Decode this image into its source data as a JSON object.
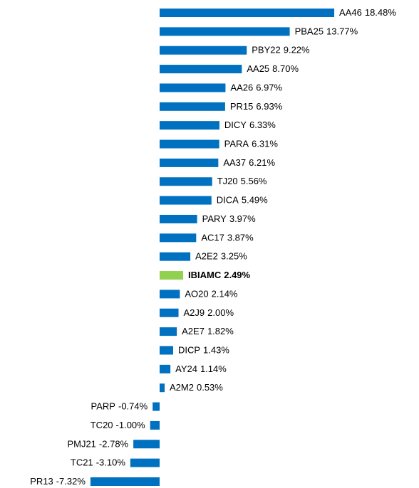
{
  "chart_data": {
    "type": "bar",
    "orientation": "horizontal",
    "categories": [
      "AA46",
      "PBA25",
      "PBY22",
      "AA25",
      "AA26",
      "PR15",
      "DICY",
      "PARA",
      "AA37",
      "TJ20",
      "DICA",
      "PARY",
      "AC17",
      "A2E2",
      "IBIAMC",
      "AO20",
      "A2J9",
      "A2E7",
      "DICP",
      "AY24",
      "A2M2",
      "PARP",
      "TC20",
      "PMJ21",
      "TC21",
      "PR13"
    ],
    "values": [
      18.48,
      13.77,
      9.22,
      8.7,
      6.97,
      6.93,
      6.33,
      6.31,
      6.21,
      5.56,
      5.49,
      3.97,
      3.87,
      3.25,
      2.49,
      2.14,
      2.0,
      1.82,
      1.43,
      1.14,
      0.53,
      -0.74,
      -1.0,
      -2.78,
      -3.1,
      -7.32
    ],
    "value_labels": [
      "18.48%",
      "13.77%",
      "9.22%",
      "8.70%",
      "6.97%",
      "6.93%",
      "6.33%",
      "6.31%",
      "6.21%",
      "5.56%",
      "5.49%",
      "3.97%",
      "3.87%",
      "3.25%",
      "2.49%",
      "2.14%",
      "2.00%",
      "1.82%",
      "1.43%",
      "1.14%",
      "0.53%",
      "-0.74%",
      "-1.00%",
      "-2.78%",
      "-3.10%",
      "-7.32%"
    ],
    "colors": [
      "#0070c0",
      "#0070c0",
      "#0070c0",
      "#0070c0",
      "#0070c0",
      "#0070c0",
      "#0070c0",
      "#0070c0",
      "#0070c0",
      "#0070c0",
      "#0070c0",
      "#0070c0",
      "#0070c0",
      "#0070c0",
      "#92d050",
      "#0070c0",
      "#0070c0",
      "#0070c0",
      "#0070c0",
      "#0070c0",
      "#0070c0",
      "#0070c0",
      "#0070c0",
      "#0070c0",
      "#0070c0",
      "#0070c0"
    ],
    "highlight_color": "#92d050"
  }
}
